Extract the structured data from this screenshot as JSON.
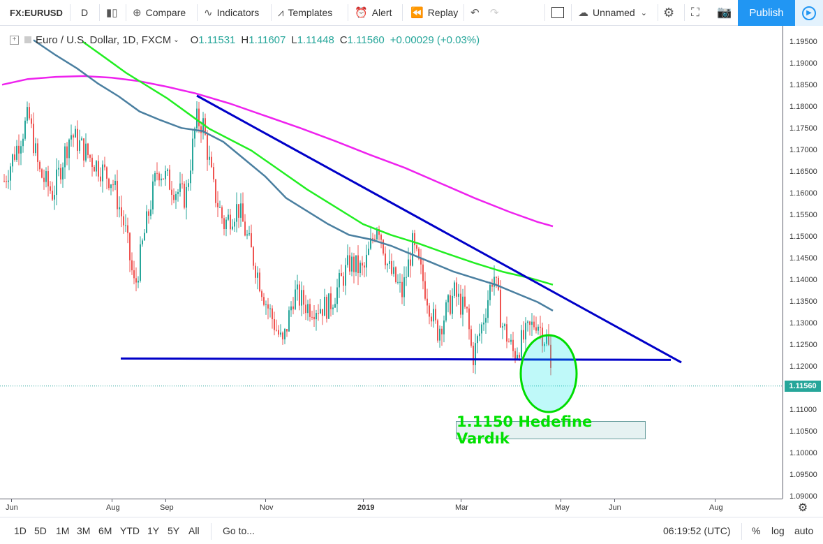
{
  "toolbar": {
    "symbol": "FX:EURUSD",
    "interval": "D",
    "compare": "Compare",
    "indicators": "Indicators",
    "templates": "Templates",
    "alert": "Alert",
    "replay": "Replay",
    "layout_name": "Unnamed",
    "publish": "Publish"
  },
  "legend": {
    "title": "Euro / U.S. Dollar, 1D, FXCM",
    "o_label": "O",
    "o": "1.11531",
    "h_label": "H",
    "h": "1.11607",
    "l_label": "L",
    "l": "1.11448",
    "c_label": "C",
    "c": "1.11560",
    "change": "+0.00029 (+0.03%)"
  },
  "bottom": {
    "ranges": [
      "1D",
      "5D",
      "1M",
      "3M",
      "6M",
      "YTD",
      "1Y",
      "5Y",
      "All"
    ],
    "goto": "Go to...",
    "time": "06:19:52 (UTC)",
    "percent": "%",
    "log": "log",
    "auto": "auto"
  },
  "colors": {
    "up": "#26a69a",
    "down": "#ef5350",
    "trendline": "#0000c8",
    "sma_green": "#22ee22",
    "sma_steel": "#4a7fa0",
    "sma_magenta": "#ee22ee",
    "accent": "#2196f3"
  },
  "chart_data": {
    "type": "candlestick",
    "symbol": "EURUSD",
    "timeframe": "1D",
    "y_ticks": [
      "1.19500",
      "1.19000",
      "1.18500",
      "1.18000",
      "1.17500",
      "1.17000",
      "1.16500",
      "1.16000",
      "1.15500",
      "1.15000",
      "1.14500",
      "1.14000",
      "1.13500",
      "1.13000",
      "1.12500",
      "1.12000",
      "1.11500",
      "1.11000",
      "1.10500",
      "1.10000",
      "1.09500",
      "1.09000"
    ],
    "x_ticks": [
      "Jun",
      "Aug",
      "Sep",
      "Nov",
      "2019",
      "Mar",
      "May",
      "Jun",
      "Aug"
    ],
    "ylim": [
      1.087,
      1.1985
    ],
    "last_price": "1.11560",
    "annotation": "1.1150 Hedefine Vardık",
    "support_level": 1.1218,
    "grid": false
  }
}
